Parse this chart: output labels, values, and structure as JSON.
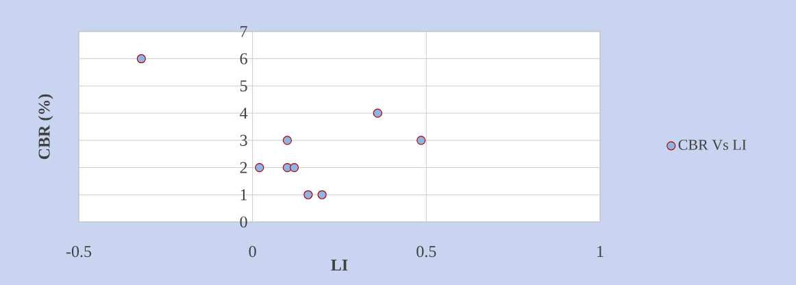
{
  "chart_data": {
    "type": "scatter",
    "xlabel": "LI",
    "ylabel": "CBR (%)",
    "series": [
      {
        "name": "CBR Vs LI",
        "color": "#8eb4e3",
        "x": [
          -0.32,
          0.02,
          0.1,
          0.1,
          0.12,
          0.16,
          0.2,
          0.36,
          0.485
        ],
        "values": [
          6,
          2,
          3,
          2,
          2,
          1,
          1,
          4,
          3
        ]
      }
    ],
    "xlim": [
      -0.5,
      1
    ],
    "xticks": [
      -0.5,
      0,
      0.5,
      1
    ],
    "ylim": [
      0,
      7
    ],
    "yticks": [
      0,
      1,
      2,
      3,
      4,
      5,
      6,
      7
    ],
    "grid": true,
    "legend": "right",
    "marker": "circle"
  }
}
